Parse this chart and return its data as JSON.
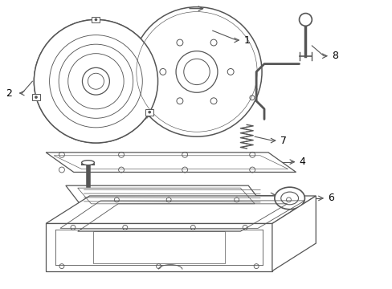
{
  "bg_color": "#ffffff",
  "line_color": "#555555",
  "label_color": "#000000",
  "lw": 0.9
}
